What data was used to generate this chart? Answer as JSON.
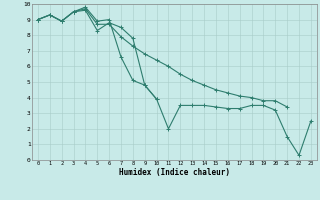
{
  "title": "",
  "xlabel": "Humidex (Indice chaleur)",
  "ylabel": "",
  "xlim": [
    -0.5,
    23.5
  ],
  "ylim": [
    0,
    10
  ],
  "xticks": [
    0,
    1,
    2,
    3,
    4,
    5,
    6,
    7,
    8,
    9,
    10,
    11,
    12,
    13,
    14,
    15,
    16,
    17,
    18,
    19,
    20,
    21,
    22,
    23
  ],
  "yticks": [
    0,
    1,
    2,
    3,
    4,
    5,
    6,
    7,
    8,
    9,
    10
  ],
  "line_color": "#2e7d6e",
  "bg_color": "#c8eae8",
  "grid_color": "#a8ccc8",
  "series": [
    [
      9.0,
      9.3,
      8.9,
      9.5,
      9.6,
      8.3,
      8.8,
      8.5,
      7.8,
      4.8,
      3.9,
      2.0,
      3.5,
      3.5,
      3.5,
      3.4,
      3.3,
      3.3,
      3.5,
      3.5,
      3.2,
      1.5,
      0.3,
      2.5
    ],
    [
      9.0,
      9.3,
      8.9,
      9.5,
      9.8,
      8.9,
      9.0,
      6.6,
      5.1,
      4.8,
      3.9,
      null,
      null,
      null,
      null,
      null,
      null,
      null,
      null,
      null,
      null,
      null,
      null,
      null
    ],
    [
      9.0,
      9.3,
      8.9,
      9.5,
      9.7,
      8.7,
      8.7,
      7.9,
      7.3,
      6.8,
      6.4,
      6.0,
      5.5,
      5.1,
      4.8,
      4.5,
      4.3,
      4.1,
      4.0,
      3.8,
      3.8,
      3.4,
      null,
      null
    ]
  ]
}
